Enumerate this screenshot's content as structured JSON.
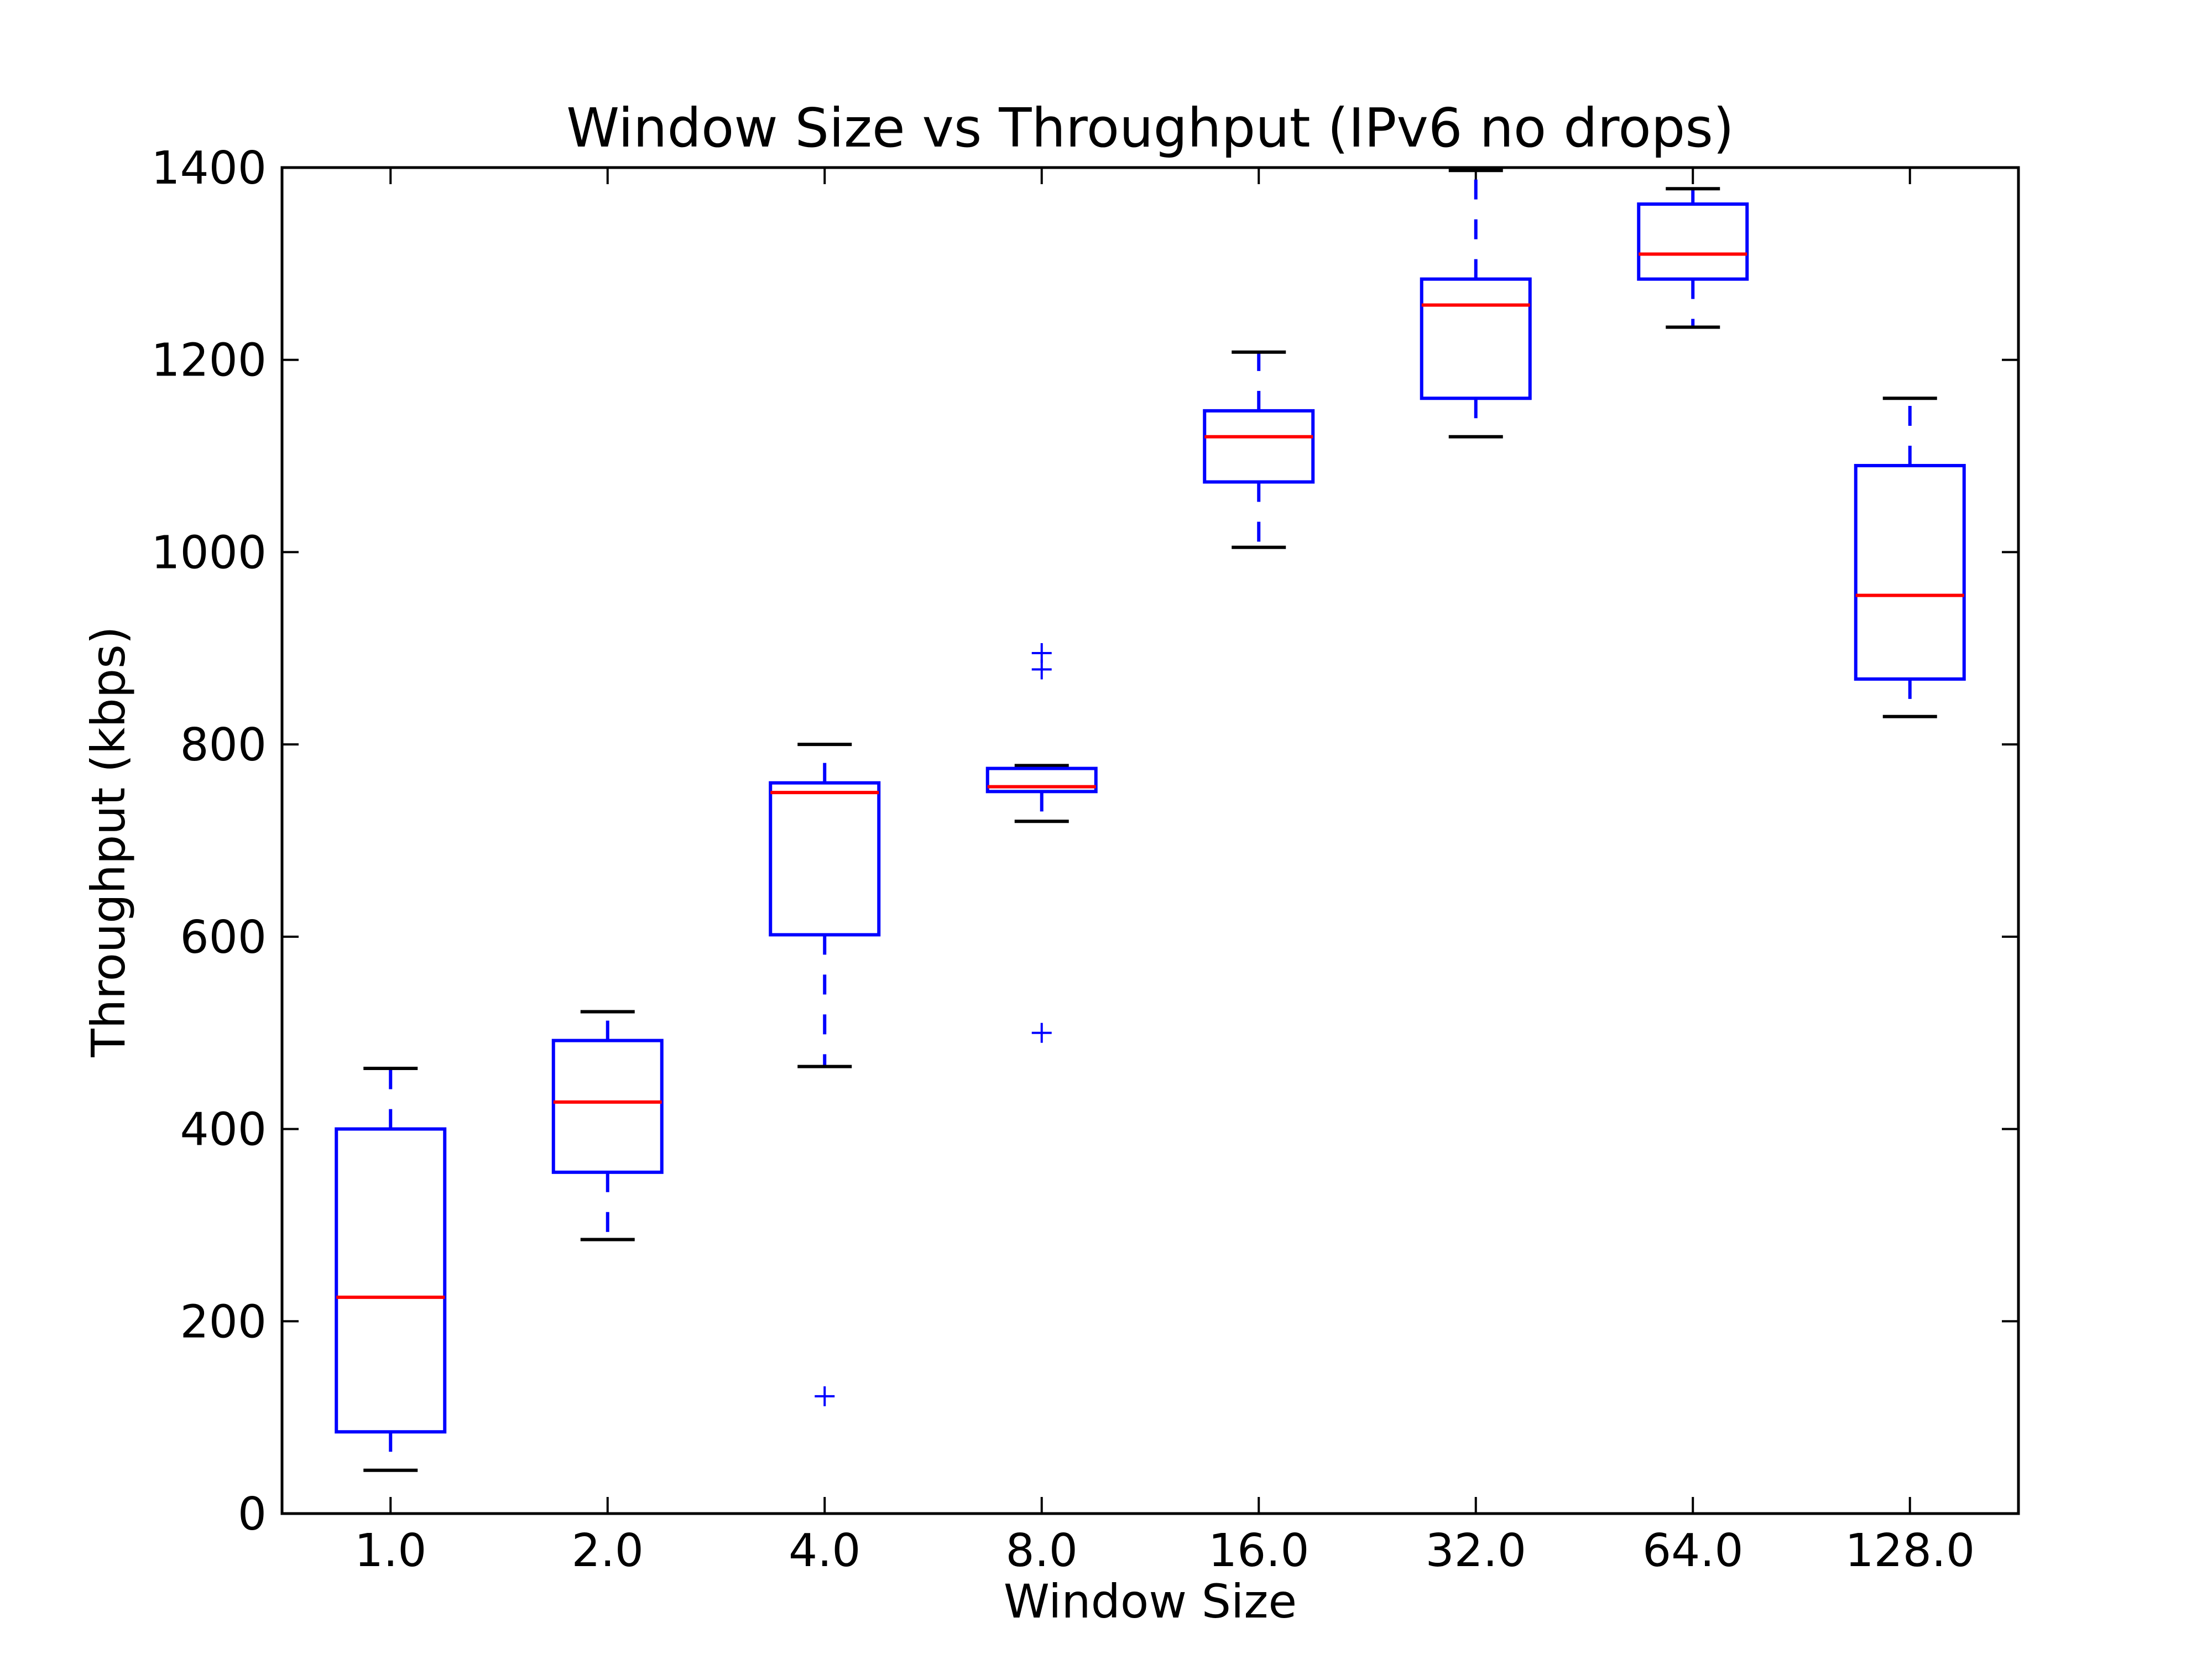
{
  "chart_data": {
    "type": "boxplot",
    "title": "Window Size vs Throughput (IPv6 no drops)",
    "xlabel": "Window Size",
    "ylabel": "Throughput (kbps)",
    "ylim": [
      0,
      1400
    ],
    "y_ticks": [
      0,
      200,
      400,
      600,
      800,
      1000,
      1200,
      1400
    ],
    "y_tick_labels": [
      "0",
      "200",
      "400",
      "600",
      "800",
      "1000",
      "1200",
      "1400"
    ],
    "categories": [
      "1.0",
      "2.0",
      "4.0",
      "8.0",
      "16.0",
      "32.0",
      "64.0",
      "128.0"
    ],
    "boxes": [
      {
        "category": "1.0",
        "whisker_low": 45,
        "q1": 85,
        "median": 225,
        "q3": 400,
        "whisker_high": 463,
        "outliers": []
      },
      {
        "category": "2.0",
        "whisker_low": 285,
        "q1": 355,
        "median": 428,
        "q3": 492,
        "whisker_high": 522,
        "outliers": []
      },
      {
        "category": "4.0",
        "whisker_low": 465,
        "q1": 602,
        "median": 750,
        "q3": 760,
        "whisker_high": 800,
        "outliers": [
          122
        ]
      },
      {
        "category": "8.0",
        "whisker_low": 720,
        "q1": 751,
        "median": 756,
        "q3": 775,
        "whisker_high": 778,
        "outliers": [
          500,
          878,
          895
        ]
      },
      {
        "category": "16.0",
        "whisker_low": 1005,
        "q1": 1073,
        "median": 1120,
        "q3": 1147,
        "whisker_high": 1208,
        "outliers": []
      },
      {
        "category": "32.0",
        "whisker_low": 1120,
        "q1": 1160,
        "median": 1257,
        "q3": 1284,
        "whisker_high": 1397,
        "outliers": []
      },
      {
        "category": "64.0",
        "whisker_low": 1234,
        "q1": 1284,
        "median": 1310,
        "q3": 1362,
        "whisker_high": 1378,
        "outliers": []
      },
      {
        "category": "128.0",
        "whisker_low": 829,
        "q1": 868,
        "median": 955,
        "q3": 1090,
        "whisker_high": 1160,
        "outliers": []
      }
    ],
    "colors": {
      "box": "#0000ff",
      "median": "#ff0000",
      "whisker": "#0000ff",
      "cap": "#000000",
      "outlier": "#0000ff",
      "axes": "#000000"
    },
    "grid": false,
    "legend": "none"
  }
}
